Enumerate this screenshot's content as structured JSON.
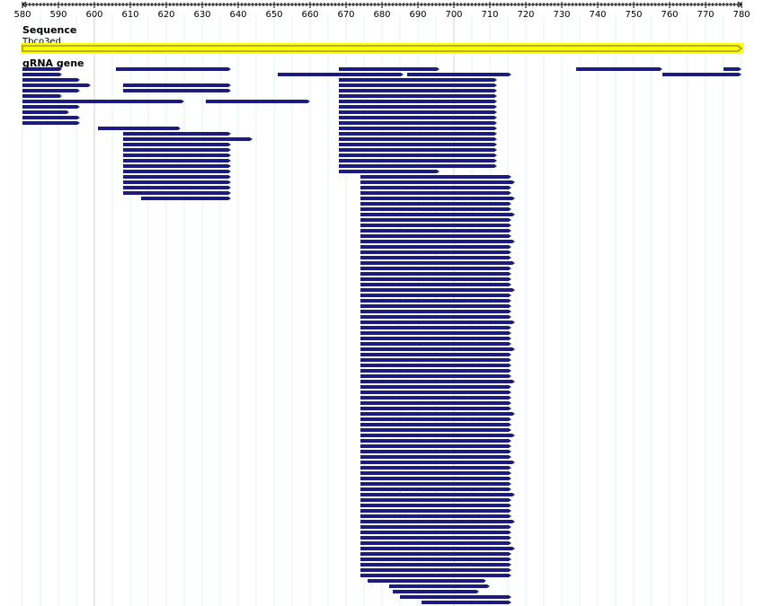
{
  "ruler": {
    "xlim": [
      580,
      780
    ],
    "xticks": [
      580,
      590,
      600,
      610,
      620,
      630,
      640,
      650,
      660,
      670,
      680,
      690,
      700,
      710,
      720,
      730,
      740,
      750,
      760,
      770,
      780
    ]
  },
  "tracks": [
    {
      "title": "Sequence",
      "features": [
        {
          "name": "Tbco3ed",
          "start": 580,
          "end": 780,
          "color": "#ffff00"
        }
      ]
    },
    {
      "title": "gRNA gene",
      "color": "#1c1c80",
      "rows": [
        [
          [
            580,
            591
          ],
          [
            606,
            638
          ],
          [
            668,
            696
          ],
          [
            734,
            758
          ],
          [
            775,
            780
          ]
        ],
        [
          [
            580,
            591
          ],
          [
            651,
            686
          ],
          [
            687,
            716
          ],
          [
            758,
            780
          ]
        ],
        [
          [
            580,
            596
          ],
          [
            668,
            712
          ]
        ],
        [
          [
            580,
            599
          ],
          [
            608,
            638
          ],
          [
            668,
            712
          ]
        ],
        [
          [
            580,
            596
          ],
          [
            608,
            638
          ],
          [
            668,
            712
          ]
        ],
        [
          [
            580,
            591
          ],
          [
            668,
            712
          ]
        ],
        [
          [
            580,
            625
          ],
          [
            631,
            660
          ],
          [
            668,
            712
          ]
        ],
        [
          [
            580,
            596
          ],
          [
            668,
            712
          ]
        ],
        [
          [
            580,
            593
          ],
          [
            668,
            712
          ]
        ],
        [
          [
            580,
            596
          ],
          [
            668,
            712
          ]
        ],
        [
          [
            580,
            596
          ],
          [
            668,
            712
          ]
        ],
        [
          [
            601,
            624
          ],
          [
            668,
            712
          ]
        ],
        [
          [
            608,
            638
          ],
          [
            668,
            712
          ]
        ],
        [
          [
            608,
            644
          ],
          [
            668,
            712
          ]
        ],
        [
          [
            608,
            638
          ],
          [
            668,
            712
          ]
        ],
        [
          [
            608,
            638
          ],
          [
            668,
            712
          ]
        ],
        [
          [
            608,
            638
          ],
          [
            668,
            712
          ]
        ],
        [
          [
            608,
            638
          ],
          [
            668,
            712
          ]
        ],
        [
          [
            608,
            638
          ],
          [
            668,
            712
          ]
        ],
        [
          [
            608,
            638
          ],
          [
            668,
            696
          ]
        ],
        [
          [
            608,
            638
          ],
          [
            674,
            716
          ]
        ],
        [
          [
            608,
            638
          ],
          [
            674,
            717
          ]
        ],
        [
          [
            608,
            638
          ],
          [
            674,
            716
          ]
        ],
        [
          [
            608,
            638
          ],
          [
            674,
            716
          ]
        ],
        [
          [
            613,
            638
          ],
          [
            674,
            717
          ]
        ],
        [
          [
            674,
            716
          ]
        ],
        [
          [
            674,
            716
          ]
        ],
        [
          [
            674,
            717
          ]
        ],
        [
          [
            674,
            716
          ]
        ],
        [
          [
            674,
            716
          ]
        ],
        [
          [
            674,
            716
          ]
        ],
        [
          [
            674,
            716
          ]
        ],
        [
          [
            674,
            717
          ]
        ],
        [
          [
            674,
            716
          ]
        ],
        [
          [
            674,
            716
          ]
        ],
        [
          [
            674,
            716
          ]
        ],
        [
          [
            674,
            717
          ]
        ],
        [
          [
            674,
            716
          ]
        ],
        [
          [
            674,
            716
          ]
        ],
        [
          [
            674,
            716
          ]
        ],
        [
          [
            674,
            716
          ]
        ],
        [
          [
            674,
            717
          ]
        ],
        [
          [
            674,
            716
          ]
        ],
        [
          [
            674,
            716
          ]
        ],
        [
          [
            674,
            716
          ]
        ],
        [
          [
            674,
            716
          ]
        ],
        [
          [
            674,
            716
          ]
        ],
        [
          [
            674,
            717
          ]
        ],
        [
          [
            674,
            716
          ]
        ],
        [
          [
            674,
            716
          ]
        ],
        [
          [
            674,
            716
          ]
        ],
        [
          [
            674,
            716
          ]
        ],
        [
          [
            674,
            717
          ]
        ],
        [
          [
            674,
            716
          ]
        ],
        [
          [
            674,
            716
          ]
        ],
        [
          [
            674,
            716
          ]
        ],
        [
          [
            674,
            716
          ]
        ],
        [
          [
            674,
            716
          ]
        ],
        [
          [
            674,
            717
          ]
        ],
        [
          [
            674,
            716
          ]
        ],
        [
          [
            674,
            716
          ]
        ],
        [
          [
            674,
            716
          ]
        ],
        [
          [
            674,
            716
          ]
        ],
        [
          [
            674,
            716
          ]
        ],
        [
          [
            674,
            717
          ]
        ],
        [
          [
            674,
            716
          ]
        ],
        [
          [
            674,
            716
          ]
        ],
        [
          [
            674,
            716
          ]
        ],
        [
          [
            674,
            717
          ]
        ],
        [
          [
            674,
            716
          ]
        ],
        [
          [
            674,
            716
          ]
        ],
        [
          [
            674,
            716
          ]
        ],
        [
          [
            674,
            716
          ]
        ],
        [
          [
            674,
            717
          ]
        ],
        [
          [
            674,
            716
          ]
        ],
        [
          [
            674,
            716
          ]
        ],
        [
          [
            674,
            716
          ]
        ],
        [
          [
            674,
            716
          ]
        ],
        [
          [
            674,
            716
          ]
        ],
        [
          [
            674,
            717
          ]
        ],
        [
          [
            674,
            716
          ]
        ],
        [
          [
            674,
            716
          ]
        ],
        [
          [
            674,
            716
          ]
        ],
        [
          [
            674,
            716
          ]
        ],
        [
          [
            674,
            717
          ]
        ],
        [
          [
            674,
            716
          ]
        ],
        [
          [
            674,
            716
          ]
        ],
        [
          [
            674,
            716
          ]
        ],
        [
          [
            674,
            716
          ]
        ],
        [
          [
            674,
            717
          ]
        ],
        [
          [
            674,
            716
          ]
        ],
        [
          [
            674,
            716
          ]
        ],
        [
          [
            674,
            716
          ]
        ],
        [
          [
            674,
            716
          ]
        ],
        [
          [
            674,
            716
          ]
        ],
        [
          [
            676,
            709
          ]
        ],
        [
          [
            682,
            710
          ]
        ],
        [
          [
            683,
            707
          ]
        ],
        [
          [
            685,
            716
          ]
        ],
        [
          [
            691,
            716
          ]
        ]
      ]
    }
  ]
}
